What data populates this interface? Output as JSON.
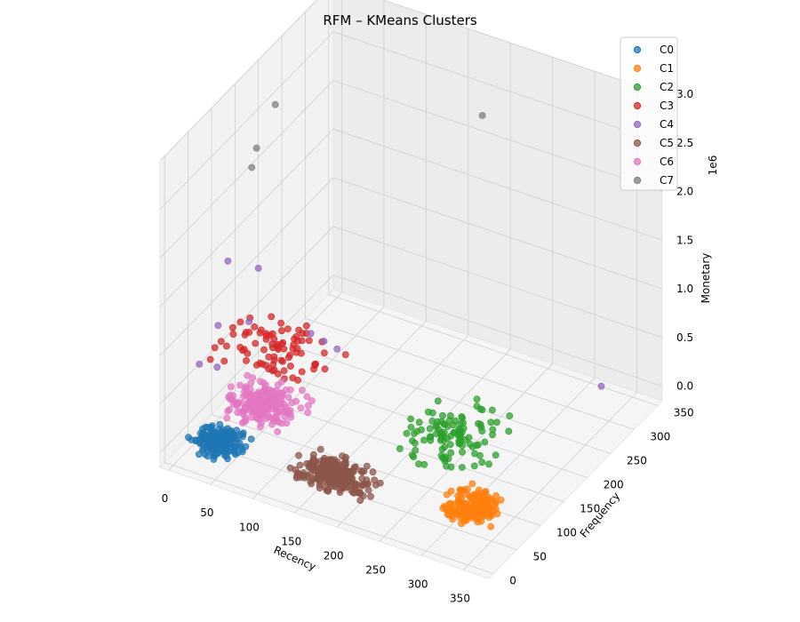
{
  "chart_data": {
    "type": "scatter3d",
    "title": "RFM – KMeans Clusters",
    "xlabel": "Recency",
    "ylabel": "Frequency",
    "zlabel": "Monetary",
    "z_offset_label": "1e6",
    "xlim": [
      -10,
      380
    ],
    "ylim": [
      -10,
      360
    ],
    "zlim": [
      -0.15,
      3.0
    ],
    "x_ticks": [
      "0",
      "50",
      "100",
      "150",
      "200",
      "250",
      "300",
      "350"
    ],
    "y_ticks": [
      "0",
      "50",
      "100",
      "150",
      "200",
      "250",
      "300",
      "350"
    ],
    "z_ticks": [
      "0.0",
      "0.5",
      "1.0",
      "1.5",
      "2.0",
      "2.5",
      "3.0"
    ],
    "grid": true,
    "legend_position": "top-right",
    "series": [
      {
        "name": "C0",
        "color": "#1f77b4",
        "centroid": [
          40,
          30,
          0.05
        ],
        "spread": [
          35,
          35,
          0.02
        ],
        "count": 220
      },
      {
        "name": "C1",
        "color": "#ff7f0e",
        "centroid": [
          320,
          60,
          0.05
        ],
        "spread": [
          40,
          45,
          0.03
        ],
        "count": 160
      },
      {
        "name": "C2",
        "color": "#2ca02c",
        "centroid": [
          250,
          150,
          0.15
        ],
        "spread": [
          70,
          80,
          0.1
        ],
        "count": 110
      },
      {
        "name": "C3",
        "color": "#d62728",
        "centroid": [
          60,
          110,
          0.6
        ],
        "spread": [
          80,
          80,
          0.3
        ],
        "count": 85
      },
      {
        "name": "C4",
        "color": "#9467bd",
        "points": [
          [
            15,
            90,
            1.55
          ],
          [
            40,
            110,
            1.45
          ],
          [
            20,
            60,
            1.05
          ],
          [
            40,
            90,
            1.0
          ],
          [
            20,
            20,
            0.85
          ],
          [
            30,
            40,
            0.75
          ],
          [
            80,
            150,
            0.7
          ],
          [
            90,
            160,
            0.6
          ],
          [
            100,
            170,
            0.5
          ],
          [
            330,
            320,
            0.05
          ]
        ]
      },
      {
        "name": "C5",
        "color": "#8c564b",
        "centroid": [
          170,
          40,
          0.05
        ],
        "spread": [
          60,
          40,
          0.02
        ],
        "count": 240
      },
      {
        "name": "C6",
        "color": "#e377c2",
        "centroid": [
          50,
          100,
          0.1
        ],
        "spread": [
          55,
          55,
          0.05
        ],
        "count": 190
      },
      {
        "name": "C7",
        "color": "#7f7f7f",
        "points": [
          [
            10,
            200,
            2.6
          ],
          [
            10,
            160,
            2.35
          ],
          [
            10,
            150,
            2.2
          ],
          [
            200,
            300,
            2.55
          ]
        ]
      }
    ]
  }
}
